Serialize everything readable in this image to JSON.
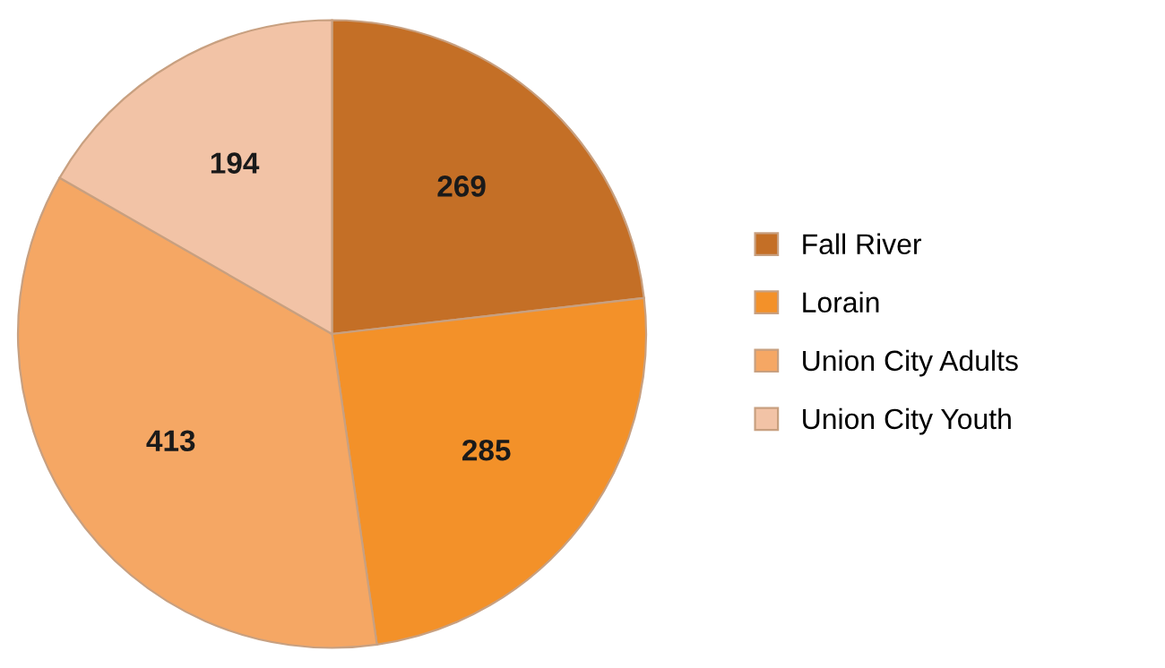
{
  "chart_data": {
    "type": "pie",
    "categories": [
      "Fall River",
      "Lorain",
      "Union City Adults",
      "Union City Youth"
    ],
    "values": [
      269,
      285,
      413,
      194
    ],
    "colors": [
      "#c46f26",
      "#f39129",
      "#f5a764",
      "#f2c3a6"
    ],
    "data_labels": true,
    "legend": "right"
  }
}
